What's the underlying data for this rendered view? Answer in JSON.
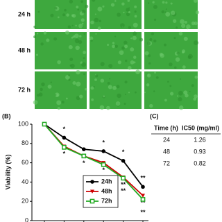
{
  "images": {
    "rows": [
      "24 h",
      "48 h",
      "72 h"
    ]
  },
  "panel_labels": [
    "(B)",
    "(C)"
  ],
  "chart_data": {
    "type": "line",
    "y_label": "Viability (%)",
    "categories": [
      null,
      null,
      null,
      null,
      null,
      null
    ],
    "ylim": [
      0,
      100
    ],
    "yticks": [
      0,
      20,
      40,
      60,
      80,
      100
    ],
    "grid": false,
    "legend": "lower-center",
    "series": [
      {
        "name": "24h",
        "color": "#000000",
        "marker": "circle",
        "values": [
          100,
          86,
          74,
          72,
          62,
          35
        ],
        "significance": [
          null,
          "*",
          null,
          "*",
          "*",
          "**"
        ]
      },
      {
        "name": "48h",
        "color": "#cc0000",
        "marker": "triangle-down",
        "values": [
          100,
          77,
          67,
          60,
          45,
          26
        ],
        "significance": [
          null,
          "*",
          "*",
          "*",
          "**",
          "**"
        ]
      },
      {
        "name": "72h",
        "color": "#22aa22",
        "marker": "square",
        "values": [
          100,
          76,
          67,
          58,
          44,
          22
        ],
        "significance": [
          null,
          null,
          null,
          null,
          "**",
          "**"
        ]
      }
    ]
  },
  "table": {
    "header": [
      "Time (h)",
      "IC50 (mg/ml)"
    ],
    "rows": [
      [
        "24",
        "1.26"
      ],
      [
        "48",
        "0.93"
      ],
      [
        "72",
        "0.82"
      ]
    ]
  }
}
